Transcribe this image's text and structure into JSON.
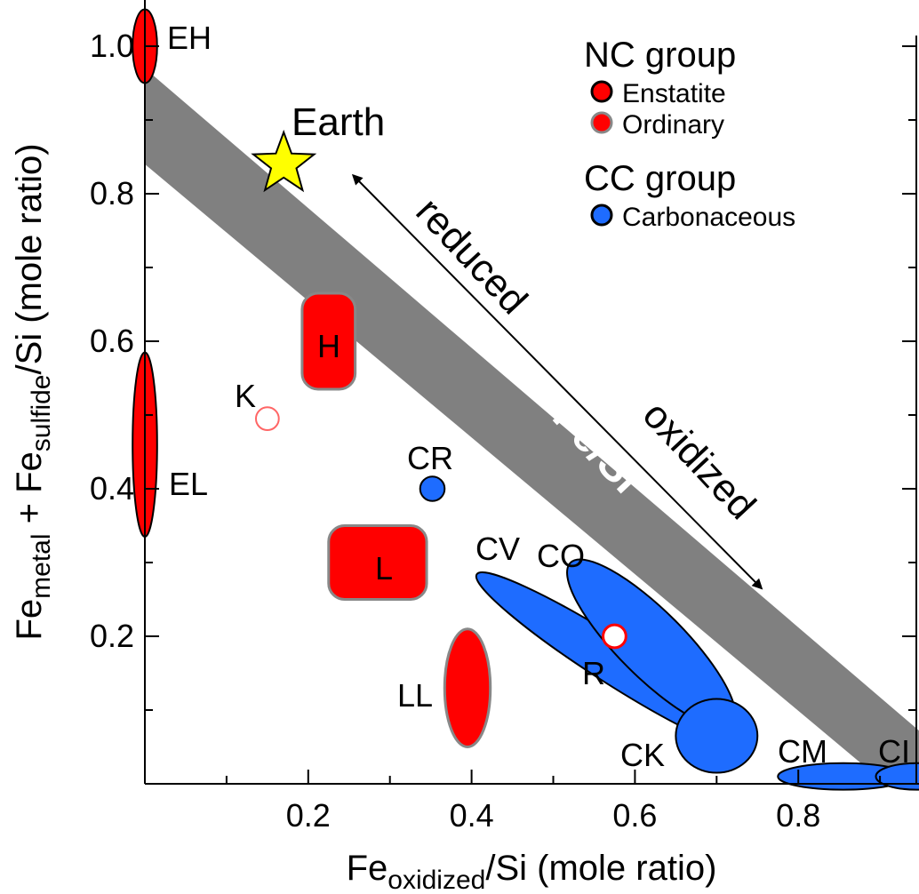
{
  "chart_data": {
    "type": "scatter",
    "title": "",
    "xlabel": {
      "main": "Fe",
      "sub": "oxidized",
      "rest": "/Si (mole ratio)"
    },
    "ylabel": {
      "a": "Fe",
      "a_sub": "metal",
      "mid": " + Fe",
      "b_sub": "sulfide",
      "rest": "/Si (mole ratio)"
    },
    "xlim": [
      0,
      0.95
    ],
    "ylim": [
      0,
      1.05
    ],
    "x_ticks": [
      0.2,
      0.4,
      0.6,
      0.8
    ],
    "y_ticks": [
      0.2,
      0.4,
      0.6,
      0.8,
      1.0
    ],
    "x_tick_labels": [
      "0.2",
      "0.4",
      "0.6",
      "0.8"
    ],
    "y_tick_labels": [
      "0.2",
      "0.4",
      "0.6",
      "0.8",
      "1.0"
    ],
    "grid": false,
    "legend": {
      "placement": "top-right",
      "groups": [
        {
          "title": "NC group",
          "entries": [
            {
              "label": "Enstatite",
              "fill": "#ff0000",
              "stroke": "#000000"
            },
            {
              "label": "Ordinary",
              "fill": "#ff0000",
              "stroke": "#888888"
            }
          ]
        },
        {
          "title": "CC group",
          "entries": [
            {
              "label": "Carbonaceous",
              "fill": "#1e6cff",
              "stroke": "#000000"
            }
          ]
        }
      ]
    },
    "band": {
      "label": "Solar Fe/Si",
      "color": "#808080",
      "upper_line": [
        [
          0,
          0.97
        ],
        [
          0.95,
          0.07
        ]
      ],
      "lower_line": [
        [
          0,
          0.84
        ],
        [
          0.95,
          -0.04
        ]
      ]
    },
    "arrow": {
      "from": [
        0.755,
        0.265
      ],
      "to": [
        0.255,
        0.825
      ],
      "label_reduced": "reduced",
      "label_oxidized": "oxidized"
    },
    "earth": {
      "label": "Earth",
      "x": 0.17,
      "y": 0.84,
      "color": "#ffff00"
    },
    "series": [
      {
        "name": "Enstatite",
        "color": "#ff0000",
        "points": [
          {
            "label": "EH",
            "x": 0.0,
            "y": 1.0,
            "rx": 0.015,
            "ry": 0.05,
            "shape": "ellipse"
          },
          {
            "label": "EL",
            "x": 0.0,
            "y": 0.46,
            "rx": 0.015,
            "ry": 0.125,
            "shape": "ellipse"
          }
        ]
      },
      {
        "name": "Ordinary",
        "color": "#ff0000",
        "points": [
          {
            "label": "H",
            "x": 0.225,
            "y": 0.6,
            "w": 0.065,
            "h": 0.13,
            "shape": "roundrect"
          },
          {
            "label": "L",
            "x": 0.285,
            "y": 0.3,
            "w": 0.12,
            "h": 0.1,
            "shape": "roundrect"
          },
          {
            "label": "LL",
            "x": 0.395,
            "y": 0.13,
            "rx": 0.028,
            "ry": 0.08,
            "shape": "ellipse"
          },
          {
            "label": "K",
            "x": 0.15,
            "y": 0.495,
            "r": 0.014,
            "shape": "hollow"
          },
          {
            "label": "R",
            "x": 0.575,
            "y": 0.2,
            "r": 0.014,
            "shape": "hollow"
          }
        ]
      },
      {
        "name": "Carbonaceous",
        "color": "#1e6cff",
        "points": [
          {
            "label": "CR",
            "x": 0.352,
            "y": 0.4,
            "r": 0.015,
            "shape": "circle"
          },
          {
            "label": "CV",
            "x": 0.575,
            "y": 0.165,
            "rx": 0.2,
            "ry": 0.03,
            "angle": 32.5,
            "shape": "ellipse"
          },
          {
            "label": "CO",
            "x": 0.62,
            "y": 0.19,
            "rx": 0.14,
            "ry": 0.045,
            "angle": 45,
            "shape": "ellipse"
          },
          {
            "label": "CK",
            "x": 0.7,
            "y": 0.065,
            "rx": 0.05,
            "ry": 0.05,
            "shape": "ellipse"
          },
          {
            "label": "CM",
            "x": 0.855,
            "y": 0.01,
            "rx": 0.08,
            "ry": 0.018,
            "shape": "ellipse"
          },
          {
            "label": "CI",
            "x": 0.945,
            "y": 0.01,
            "rx": 0.05,
            "ry": 0.018,
            "shape": "ellipse"
          }
        ]
      }
    ]
  }
}
